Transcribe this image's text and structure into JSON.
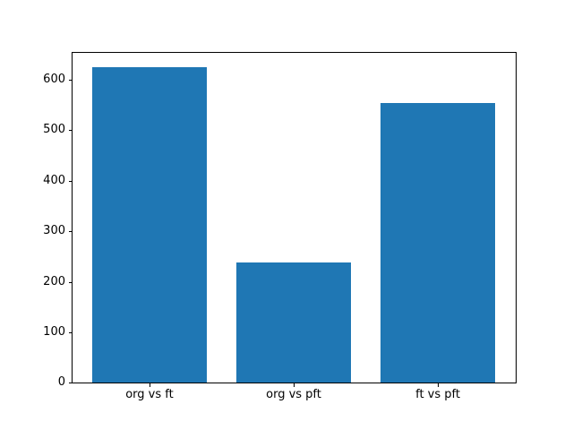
{
  "chart_data": {
    "type": "bar",
    "title": "",
    "xlabel": "",
    "ylabel": "",
    "categories": [
      "org vs ft",
      "org vs pft",
      "ft vs pft"
    ],
    "values": [
      625,
      238,
      555
    ],
    "yticks": [
      0,
      100,
      200,
      300,
      400,
      500,
      600
    ],
    "ylim": [
      0,
      656
    ],
    "xlim": [
      -0.54,
      2.54
    ],
    "bar_width": 0.8,
    "bar_color": "#1f77b4",
    "background_color": "#ffffff",
    "spine_color": "#000000",
    "grid": false,
    "legend": "none"
  }
}
